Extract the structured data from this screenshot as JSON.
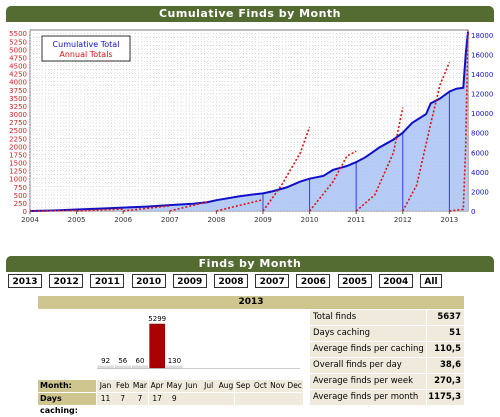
{
  "page_title": "Cumulative Finds by Month",
  "chart_data": {
    "type": "line",
    "title": "Cumulative Finds by Month",
    "legend": {
      "placement": "top-left",
      "entries": [
        "Cumulative Total",
        "Annual Totals"
      ]
    },
    "grid": true,
    "xlim": [
      2004.0,
      2013.4
    ],
    "x_ticks": [
      "2004",
      "2005",
      "2006",
      "2007",
      "2008",
      "2009",
      "2010",
      "2011",
      "2012",
      "2013"
    ],
    "y_left": {
      "ylim": [
        0,
        5600
      ],
      "ticks": [
        0,
        250,
        500,
        750,
        1000,
        1250,
        1500,
        1750,
        2000,
        2250,
        2500,
        2750,
        3000,
        3250,
        3500,
        3750,
        4000,
        4250,
        4500,
        4750,
        5000,
        5250,
        5500
      ]
    },
    "y_right": {
      "ylim": [
        0,
        18500
      ],
      "ticks": [
        0,
        2000,
        4000,
        6000,
        8000,
        10000,
        12000,
        14000,
        16000,
        18000
      ]
    },
    "series": [
      {
        "name": "Cumulative Total",
        "axis": "right",
        "color": "#1010c8",
        "x": [
          2004.0,
          2004.5,
          2005.0,
          2005.5,
          2006.0,
          2006.5,
          2007.0,
          2007.5,
          2007.8,
          2008.0,
          2008.5,
          2008.8,
          2009.0,
          2009.2,
          2009.5,
          2009.8,
          2010.0,
          2010.3,
          2010.5,
          2010.8,
          2011.0,
          2011.2,
          2011.5,
          2011.8,
          2012.0,
          2012.2,
          2012.5,
          2012.6,
          2012.8,
          2013.0,
          2013.15,
          2013.3,
          2013.35,
          2013.4
        ],
        "y": [
          0,
          50,
          150,
          250,
          350,
          450,
          600,
          750,
          900,
          1100,
          1500,
          1700,
          1800,
          2000,
          2400,
          3000,
          3300,
          3600,
          4200,
          4600,
          5000,
          5500,
          6500,
          7300,
          8000,
          9000,
          9900,
          11000,
          11500,
          12200,
          12500,
          12600,
          16000,
          18300
        ]
      },
      {
        "name": "Annual Totals",
        "axis": "left",
        "color": "#dd1111",
        "segments": [
          {
            "x": [
              2004.0,
              2005.0
            ],
            "y": [
              0,
              20
            ]
          },
          {
            "x": [
              2005.0,
              2006.0
            ],
            "y": [
              0,
              60
            ]
          },
          {
            "x": [
              2006.0,
              2007.0
            ],
            "y": [
              0,
              160
            ]
          },
          {
            "x": [
              2007.0,
              2007.8
            ],
            "y": [
              0,
              280
            ]
          },
          {
            "x": [
              2008.0,
              2009.0
            ],
            "y": [
              0,
              350
            ]
          },
          {
            "x": [
              2009.0,
              2009.4,
              2009.8,
              2010.0
            ],
            "y": [
              0,
              800,
              1800,
              2600
            ]
          },
          {
            "x": [
              2010.0,
              2010.5,
              2010.8,
              2011.0
            ],
            "y": [
              0,
              900,
              1700,
              1850
            ]
          },
          {
            "x": [
              2011.0,
              2011.4,
              2011.8,
              2012.0
            ],
            "y": [
              0,
              500,
              1800,
              3200
            ]
          },
          {
            "x": [
              2012.0,
              2012.3,
              2012.6,
              2012.8,
              2013.0
            ],
            "y": [
              0,
              800,
              2700,
              3900,
              4600
            ]
          },
          {
            "x": [
              2013.0,
              2013.3,
              2013.35,
              2013.4
            ],
            "y": [
              0,
              50,
              2000,
              5580
            ]
          }
        ]
      }
    ],
    "year_markers": [
      2009.0,
      2010.0,
      2011.0,
      2012.0,
      2013.0
    ]
  },
  "finds_by_month": {
    "title": "Finds by Month",
    "years": [
      "2013",
      "2012",
      "2011",
      "2010",
      "2009",
      "2008",
      "2007",
      "2006",
      "2005",
      "2004",
      "All"
    ],
    "selected_year": "2013",
    "month_label": "Month:",
    "days_label": "Days caching:",
    "months": [
      "Jan",
      "Feb",
      "Mar",
      "Apr",
      "May",
      "Jun",
      "Jul",
      "Aug",
      "Sep",
      "Oct",
      "Nov",
      "Dec"
    ],
    "month_values": [
      92,
      56,
      60,
      5299,
      130,
      null,
      null,
      null,
      null,
      null,
      null,
      null
    ],
    "days_caching": [
      11,
      7,
      7,
      17,
      9,
      null,
      null,
      null,
      null,
      null,
      null,
      null
    ],
    "highlight_month_index": 3,
    "bar_color": "#aa0000",
    "stats": [
      {
        "label": "Total finds",
        "value": "5637"
      },
      {
        "label": "Days caching",
        "value": "51"
      },
      {
        "label": "Average finds per caching day",
        "value": "110,5"
      },
      {
        "label": "Overall finds per day",
        "value": "38,6"
      },
      {
        "label": "Average finds per week",
        "value": "270,3"
      },
      {
        "label": "Average finds per month",
        "value": "1175,3"
      }
    ]
  },
  "colors": {
    "banner": "#546b31",
    "header_beige": "#cfc58f",
    "cell_beige": "#efeadb",
    "area_fill": "#a9c3f5",
    "axis_left": "#cc2222",
    "axis_right": "#1010c8"
  }
}
